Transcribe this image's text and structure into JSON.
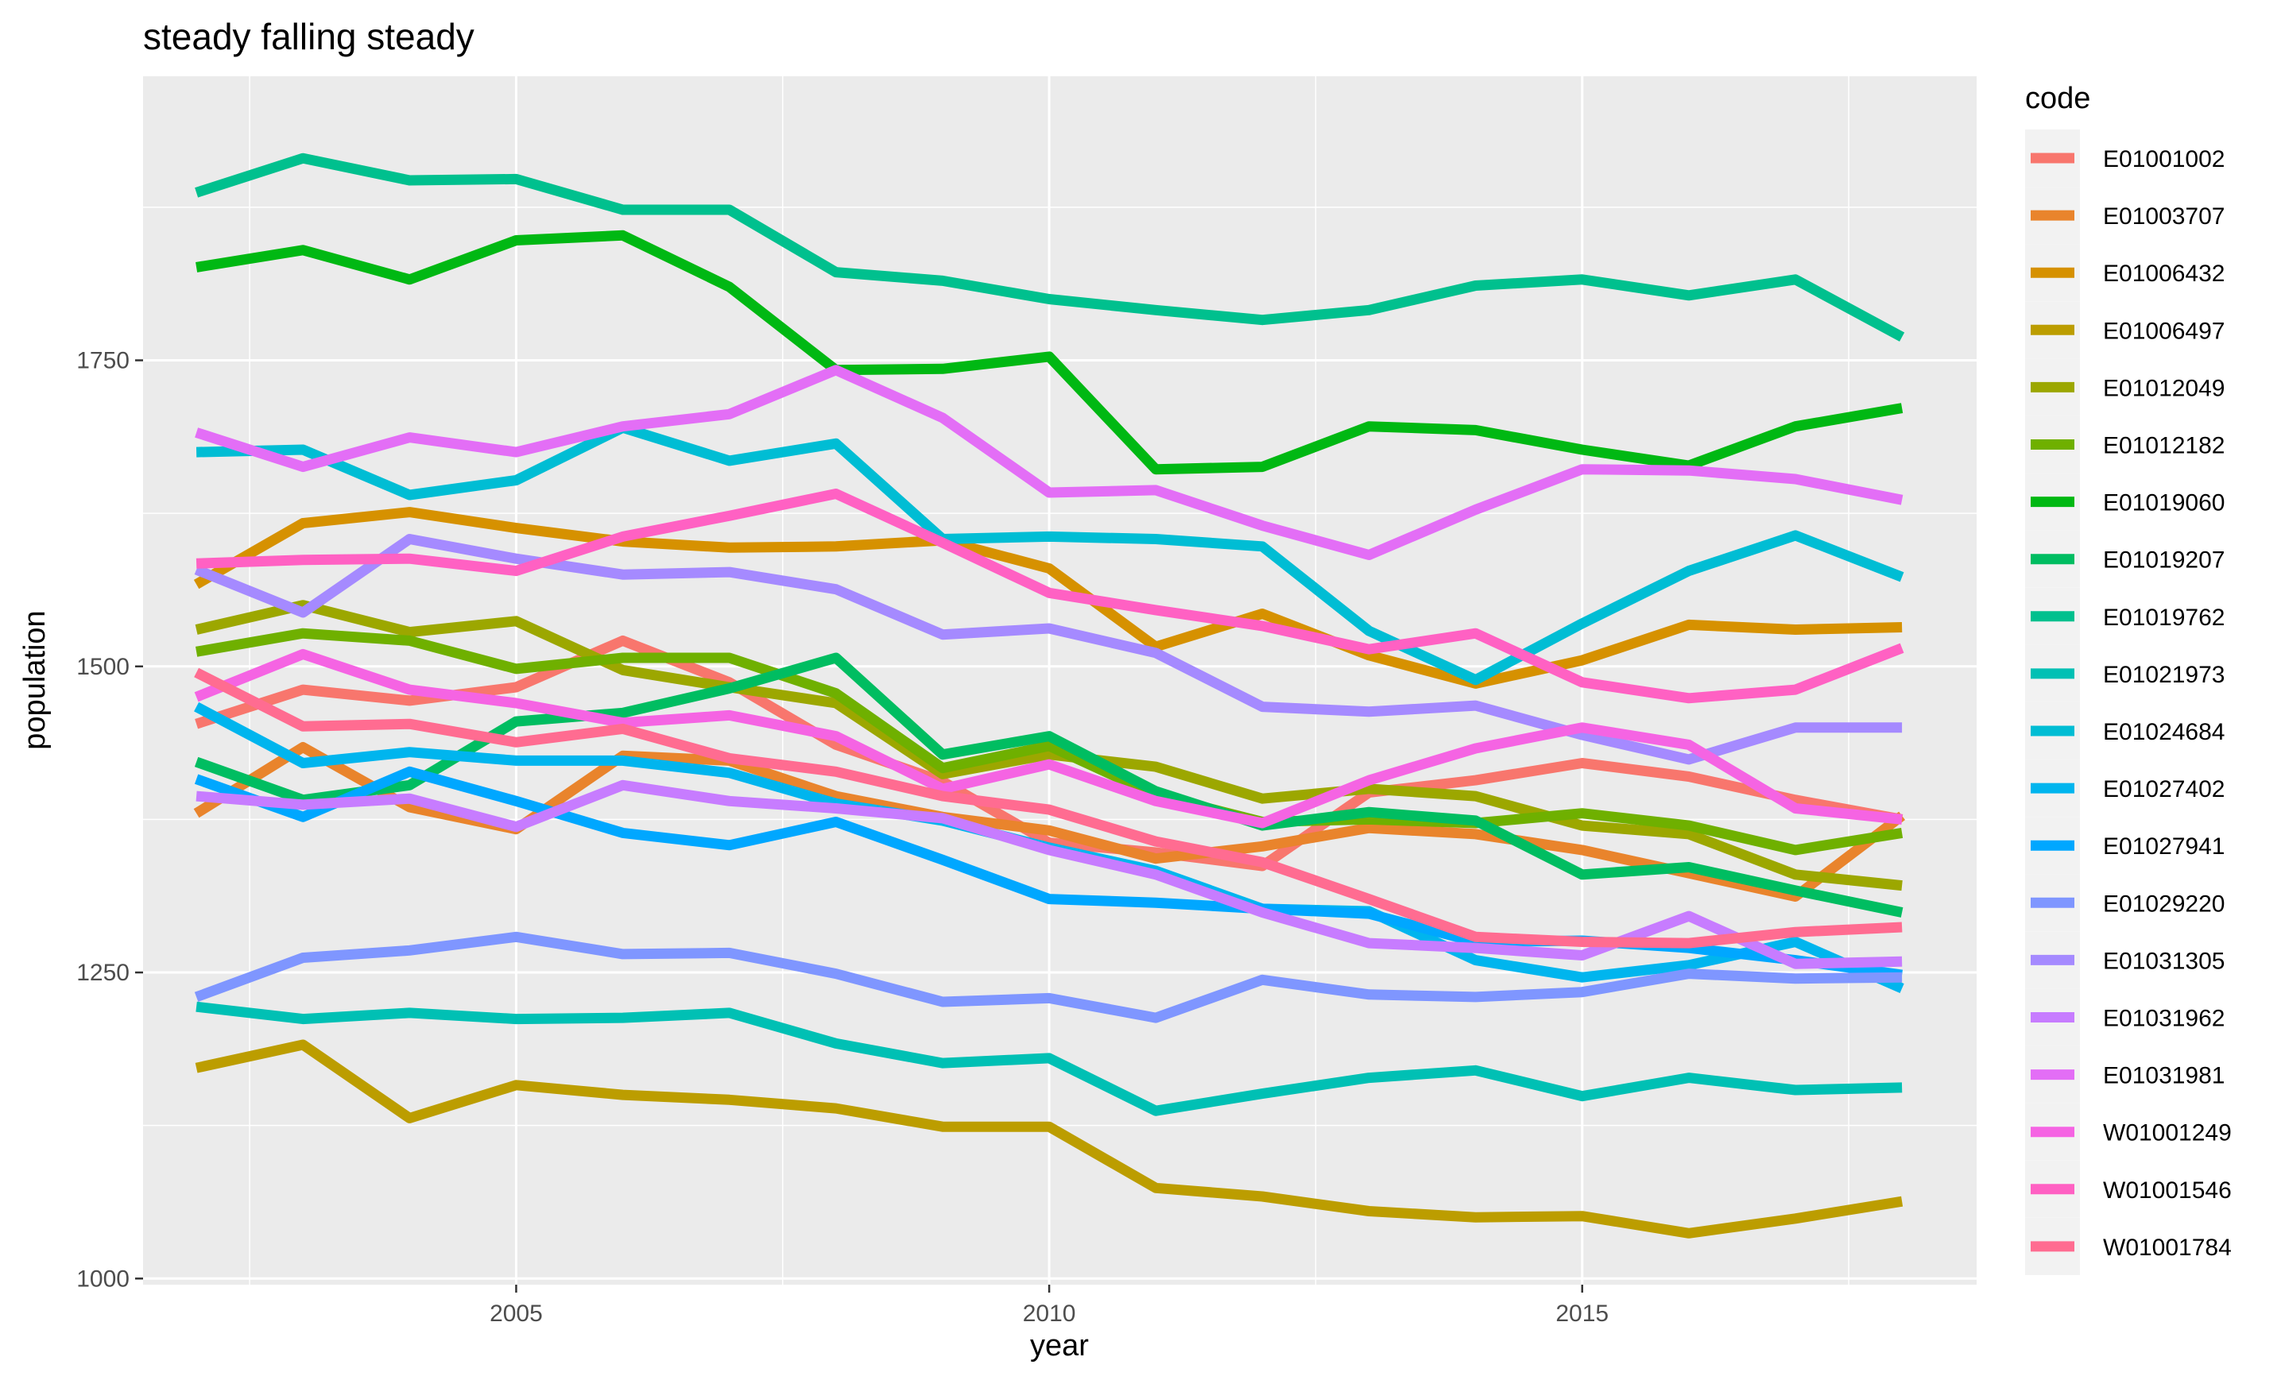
{
  "chart_data": {
    "type": "line",
    "title": "steady falling steady",
    "xlabel": "year",
    "ylabel": "population",
    "legend_title": "code",
    "legend_position": "right",
    "grid": true,
    "xlim": [
      2001.5,
      2018.7
    ],
    "ylim": [
      995,
      1982
    ],
    "x_ticks": [
      2005,
      2010,
      2015
    ],
    "x_minor_ticks": [
      2002.5,
      2007.5,
      2012.5,
      2017.5
    ],
    "y_ticks": [
      1000,
      1250,
      1500,
      1750
    ],
    "y_minor_ticks": [
      1125,
      1375,
      1625,
      1875
    ],
    "x_tick_labels": [
      "2005",
      "2010",
      "2015"
    ],
    "y_tick_labels": [
      "1000",
      "1250",
      "1500",
      "1750"
    ],
    "x": [
      2002,
      2003,
      2004,
      2005,
      2006,
      2007,
      2008,
      2009,
      2010,
      2011,
      2012,
      2013,
      2014,
      2015,
      2016,
      2017,
      2018
    ],
    "series": [
      {
        "name": "E01001002",
        "color": "#F8766D",
        "values": [
          1453,
          1481,
          1472,
          1483,
          1521,
          1487,
          1436,
          1406,
          1356,
          1348,
          1337,
          1397,
          1407,
          1421,
          1410,
          1391,
          1375
        ]
      },
      {
        "name": "E01003707",
        "color": "#E9842C",
        "values": [
          1380,
          1434,
          1385,
          1367,
          1427,
          1423,
          1394,
          1377,
          1366,
          1343,
          1353,
          1368,
          1363,
          1350,
          1331,
          1312,
          1378
        ]
      },
      {
        "name": "E01006432",
        "color": "#D69100",
        "values": [
          1567,
          1617,
          1626,
          1613,
          1602,
          1597,
          1598,
          1603,
          1580,
          1516,
          1543,
          1509,
          1486,
          1505,
          1534,
          1530,
          1532
        ]
      },
      {
        "name": "E01006497",
        "color": "#BC9D00",
        "values": [
          1172,
          1191,
          1131,
          1158,
          1150,
          1146,
          1139,
          1124,
          1124,
          1074,
          1067,
          1055,
          1050,
          1051,
          1037,
          1049,
          1063
        ]
      },
      {
        "name": "E01012049",
        "color": "#9CA700",
        "values": [
          1530,
          1550,
          1528,
          1537,
          1497,
          1483,
          1470,
          1412,
          1428,
          1418,
          1392,
          1400,
          1394,
          1370,
          1363,
          1330,
          1321
        ]
      },
      {
        "name": "E01012182",
        "color": "#6FB000",
        "values": [
          1512,
          1527,
          1521,
          1498,
          1507,
          1507,
          1478,
          1417,
          1435,
          1395,
          1373,
          1375,
          1372,
          1380,
          1370,
          1350,
          1364
        ]
      },
      {
        "name": "E01019060",
        "color": "#00B813",
        "values": [
          1826,
          1840,
          1816,
          1848,
          1852,
          1810,
          1742,
          1743,
          1753,
          1661,
          1663,
          1696,
          1693,
          1677,
          1664,
          1696,
          1711
        ]
      },
      {
        "name": "E01019207",
        "color": "#00BD61",
        "values": [
          1422,
          1391,
          1403,
          1455,
          1462,
          1482,
          1507,
          1428,
          1443,
          1398,
          1370,
          1381,
          1374,
          1330,
          1336,
          1317,
          1299
        ]
      },
      {
        "name": "E01019762",
        "color": "#00C08E",
        "values": [
          1887,
          1915,
          1897,
          1898,
          1873,
          1873,
          1822,
          1815,
          1800,
          1791,
          1783,
          1791,
          1811,
          1816,
          1803,
          1816,
          1769
        ]
      },
      {
        "name": "E01021973",
        "color": "#00C0B4",
        "values": [
          1222,
          1212,
          1217,
          1212,
          1213,
          1217,
          1192,
          1176,
          1180,
          1137,
          1151,
          1164,
          1170,
          1149,
          1164,
          1154,
          1156
        ]
      },
      {
        "name": "E01024684",
        "color": "#00BDD4",
        "values": [
          1675,
          1677,
          1640,
          1652,
          1695,
          1668,
          1682,
          1604,
          1606,
          1604,
          1598,
          1529,
          1489,
          1535,
          1578,
          1607,
          1573
        ]
      },
      {
        "name": "E01027402",
        "color": "#00B5EE",
        "values": [
          1467,
          1421,
          1430,
          1423,
          1423,
          1413,
          1388,
          1374,
          1352,
          1333,
          1302,
          1300,
          1260,
          1246,
          1256,
          1275,
          1237
        ]
      },
      {
        "name": "E01027941",
        "color": "#00A7FF",
        "values": [
          1408,
          1377,
          1414,
          1390,
          1364,
          1354,
          1373,
          1342,
          1310,
          1307,
          1302,
          1298,
          1275,
          1276,
          1270,
          1260,
          1248
        ]
      },
      {
        "name": "E01029220",
        "color": "#7F96FF",
        "values": [
          1230,
          1262,
          1268,
          1279,
          1265,
          1266,
          1249,
          1226,
          1229,
          1213,
          1244,
          1232,
          1230,
          1234,
          1249,
          1245,
          1246
        ]
      },
      {
        "name": "E01031305",
        "color": "#A58AFF",
        "values": [
          1579,
          1544,
          1604,
          1588,
          1575,
          1577,
          1563,
          1526,
          1531,
          1511,
          1467,
          1463,
          1468,
          1444,
          1424,
          1450,
          1450
        ]
      },
      {
        "name": "E01031962",
        "color": "#C77CFF",
        "values": [
          1394,
          1387,
          1392,
          1369,
          1403,
          1390,
          1384,
          1376,
          1350,
          1330,
          1299,
          1274,
          1270,
          1264,
          1296,
          1257,
          1259
        ]
      },
      {
        "name": "E01031981",
        "color": "#E36EF6",
        "values": [
          1691,
          1663,
          1687,
          1675,
          1696,
          1706,
          1742,
          1703,
          1642,
          1644,
          1615,
          1591,
          1628,
          1661,
          1660,
          1653,
          1636
        ]
      },
      {
        "name": "W01001249",
        "color": "#F564E3",
        "values": [
          1475,
          1510,
          1481,
          1470,
          1454,
          1460,
          1443,
          1400,
          1420,
          1390,
          1372,
          1407,
          1433,
          1450,
          1436,
          1384,
          1375
        ]
      },
      {
        "name": "W01001546",
        "color": "#FF61C3",
        "values": [
          1584,
          1587,
          1588,
          1578,
          1606,
          1623,
          1641,
          1601,
          1560,
          1546,
          1533,
          1514,
          1527,
          1487,
          1474,
          1481,
          1515
        ]
      },
      {
        "name": "W01001784",
        "color": "#FF6C91",
        "values": [
          1495,
          1451,
          1453,
          1438,
          1449,
          1425,
          1414,
          1394,
          1383,
          1357,
          1340,
          1310,
          1279,
          1275,
          1274,
          1283,
          1287
        ]
      }
    ]
  }
}
